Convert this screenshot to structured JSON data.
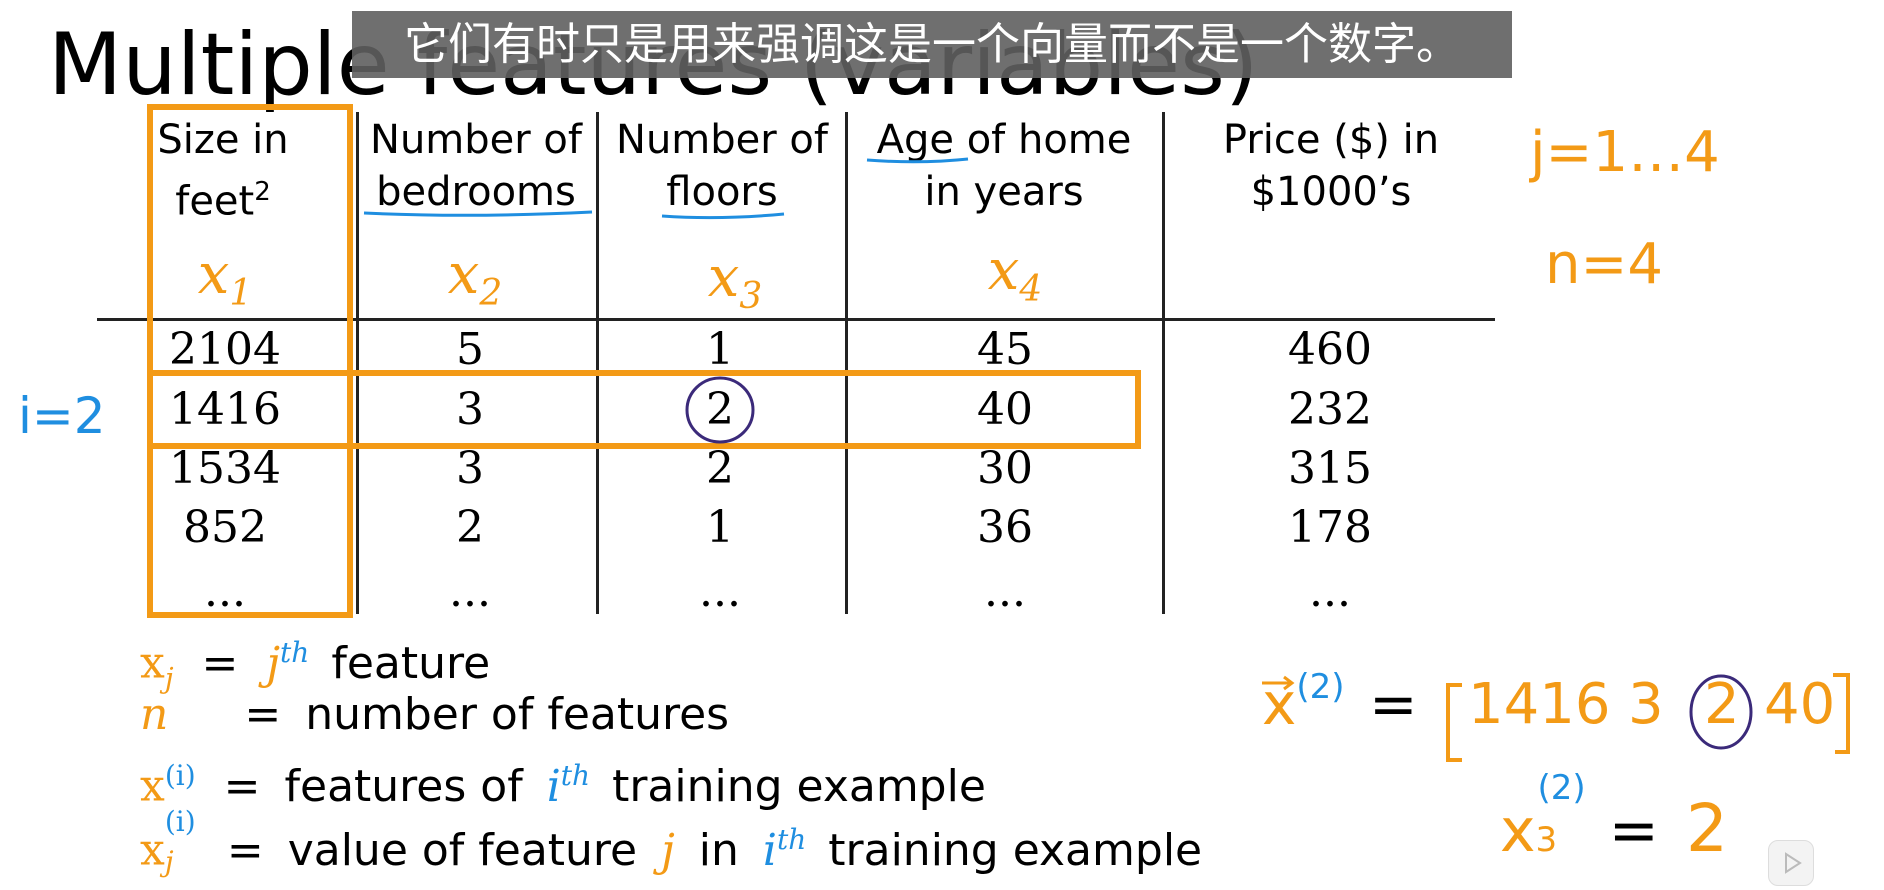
{
  "title": "Multiple features (variables)",
  "subtitle": "它们有时只是用来强调这是一个向量而不是一个数字。",
  "table": {
    "headers": [
      {
        "line1": "Size in",
        "line2": "feet",
        "sup": "2"
      },
      {
        "line1": "Number of",
        "line2": "bedrooms"
      },
      {
        "line1": "Number of",
        "line2": "floors"
      },
      {
        "line1": "Age of home",
        "line2": "in years"
      },
      {
        "line1": "Price ($) in",
        "line2": "$1000’s"
      }
    ],
    "feature_symbols": [
      "x",
      "x",
      "x",
      "x"
    ],
    "feature_indices": [
      "1",
      "2",
      "3",
      "4"
    ],
    "rows": [
      [
        "2104",
        "5",
        "1",
        "45",
        "460"
      ],
      [
        "1416",
        "3",
        "2",
        "40",
        "232"
      ],
      [
        "1534",
        "3",
        "2",
        "30",
        "315"
      ],
      [
        "852",
        "2",
        "1",
        "36",
        "178"
      ],
      [
        "...",
        "...",
        "...",
        "...",
        "..."
      ]
    ]
  },
  "annotations": {
    "row_label": "i=2",
    "j_range": "j=1…4",
    "n_value": "n=4",
    "vector_lhs": "x",
    "vector_sup": "(2)",
    "vector_eq": "=",
    "vector_values": [
      "1416",
      "3",
      "2",
      "40"
    ],
    "scalar_lhs": "x",
    "scalar_sub": "3",
    "scalar_sup": "(2)",
    "scalar_eq": "=",
    "scalar_value": "2"
  },
  "notation": [
    {
      "sym": "x",
      "sub": "j",
      "eq": "=",
      "rhs_var": "j",
      "rhs_sup": "th",
      "rhs_text": "feature"
    },
    {
      "sym": "n",
      "eq": "=",
      "rhs_text": "number of features"
    },
    {
      "sym": "x",
      "sup": "(i)",
      "eq": "=",
      "rhs_pre": "features of",
      "rhs_var": "i",
      "rhs_sup": "th",
      "rhs_text": "training example"
    },
    {
      "sym": "x",
      "sub": "j",
      "sup": "(i)",
      "eq": "=",
      "rhs_pre": "value of feature",
      "rhs_var1": "j",
      "rhs_mid": "in",
      "rhs_var": "i",
      "rhs_sup": "th",
      "rhs_text": "training example"
    }
  ],
  "colors": {
    "orange": "#f39a16",
    "blue": "#1f8ee0",
    "purple": "#3b2a7a",
    "caption_bg": "#5f5f5f"
  },
  "icons": [
    "play-icon"
  ]
}
